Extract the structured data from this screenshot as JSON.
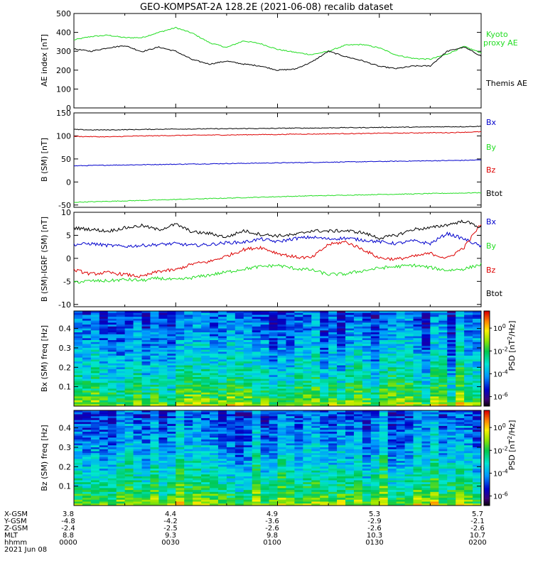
{
  "title": "GEO-KOMPSAT-2A 128.2E (2021-06-08) recalib dataset",
  "colors": {
    "black": "#000000",
    "green": "#22dd22",
    "blue": "#0000cc",
    "red": "#dd0000"
  },
  "chart_data": [
    {
      "type": "line",
      "ylabel": "AE index [nT]",
      "ylim": [
        0,
        500
      ],
      "yticks": [
        "0",
        "100",
        "200",
        "300",
        "400",
        "500"
      ],
      "x": [
        "0000",
        "0005",
        "0010",
        "0015",
        "0020",
        "0025",
        "0030",
        "0035",
        "0040",
        "0045",
        "0050",
        "0055",
        "0100",
        "0105",
        "0110",
        "0115",
        "0120",
        "0125",
        "0130",
        "0135",
        "0140",
        "0145",
        "0150",
        "0155",
        "0200"
      ],
      "series": [
        {
          "name": "Kyoto proxy AE",
          "color": "#22dd22",
          "values": [
            360,
            378,
            385,
            372,
            372,
            400,
            425,
            395,
            345,
            320,
            355,
            340,
            310,
            295,
            282,
            300,
            332,
            336,
            318,
            280,
            262,
            258,
            285,
            325,
            292
          ]
        },
        {
          "name": "Themis AE",
          "color": "#000000",
          "values": [
            312,
            300,
            318,
            330,
            298,
            322,
            300,
            255,
            232,
            248,
            232,
            222,
            200,
            205,
            242,
            300,
            272,
            250,
            220,
            208,
            222,
            222,
            300,
            322,
            275
          ]
        }
      ]
    },
    {
      "type": "line",
      "ylabel": "B (SM) [nT]",
      "ylim": [
        -55,
        150
      ],
      "yticks": [
        "-50",
        "0",
        "50",
        "100",
        "150"
      ],
      "x": [
        "0000",
        "0005",
        "0010",
        "0015",
        "0020",
        "0025",
        "0030",
        "0035",
        "0040",
        "0045",
        "0050",
        "0055",
        "0100",
        "0105",
        "0110",
        "0115",
        "0120",
        "0125",
        "0130",
        "0135",
        "0140",
        "0145",
        "0150",
        "0155",
        "0200"
      ],
      "series": [
        {
          "name": "Bx",
          "color": "#0000cc",
          "values": [
            35,
            35.8,
            36.5,
            37,
            37.5,
            38,
            38.5,
            39,
            39.5,
            40,
            40.5,
            41,
            41.5,
            42,
            42.5,
            43,
            43.5,
            44,
            44.5,
            45,
            45.5,
            46,
            46.5,
            47,
            48
          ]
        },
        {
          "name": "By",
          "color": "#22dd22",
          "values": [
            -44,
            -43,
            -42,
            -41,
            -40,
            -39,
            -38,
            -37,
            -36,
            -35,
            -34,
            -33,
            -32,
            -31,
            -30,
            -29.5,
            -28.5,
            -28,
            -27,
            -26.5,
            -26,
            -25,
            -24.5,
            -24,
            -23
          ]
        },
        {
          "name": "Bz",
          "color": "#dd0000",
          "values": [
            99,
            98.5,
            98,
            99,
            100,
            100.5,
            101,
            101.5,
            102,
            102,
            102.5,
            103,
            103,
            104,
            104,
            104.5,
            105,
            105,
            106,
            106,
            106.5,
            107,
            107,
            108,
            109
          ]
        },
        {
          "name": "Btot",
          "color": "#000000",
          "values": [
            114,
            113,
            113,
            113.5,
            114,
            114.5,
            115,
            115,
            115.5,
            115.5,
            116,
            116,
            116.5,
            117,
            117,
            117.5,
            118,
            118,
            118.5,
            119,
            119,
            119.5,
            120,
            120,
            121
          ]
        }
      ]
    },
    {
      "type": "line",
      "ylabel": "B (SM)-IGRF (SM) [nT]",
      "ylim": [
        -10.5,
        10
      ],
      "yticks": [
        "-10",
        "-5",
        "0",
        "5",
        "10"
      ],
      "x": [
        "0000",
        "0005",
        "0010",
        "0015",
        "0020",
        "0025",
        "0030",
        "0035",
        "0040",
        "0045",
        "0050",
        "0055",
        "0100",
        "0105",
        "0110",
        "0115",
        "0120",
        "0125",
        "0130",
        "0135",
        "0140",
        "0145",
        "0150",
        "0155",
        "0200"
      ],
      "series": [
        {
          "name": "Bx",
          "color": "#0000cc",
          "values": [
            3.0,
            3.2,
            2.8,
            2.6,
            2.8,
            3.0,
            3.2,
            2.8,
            3.0,
            3.4,
            3.5,
            4.2,
            3.6,
            4.3,
            4.6,
            4.2,
            4.4,
            4.0,
            3.6,
            3.2,
            3.8,
            3.2,
            5.4,
            4.2,
            2.6
          ]
        },
        {
          "name": "By",
          "color": "#22dd22",
          "values": [
            -5.2,
            -4.9,
            -4.9,
            -4.6,
            -4.8,
            -4.3,
            -4.7,
            -4.2,
            -3.6,
            -3.0,
            -2.3,
            -1.8,
            -1.5,
            -2.2,
            -2.5,
            -3.5,
            -3.4,
            -2.7,
            -2.1,
            -1.8,
            -1.5,
            -2.0,
            -2.6,
            -2.3,
            -1.3
          ]
        },
        {
          "name": "Bz",
          "color": "#dd0000",
          "values": [
            -2.5,
            -3.4,
            -3.1,
            -3.5,
            -4.0,
            -2.8,
            -2.5,
            -1.2,
            -0.7,
            0.5,
            1.9,
            2.4,
            1.1,
            0.3,
            0.1,
            3.0,
            3.6,
            2.0,
            0.1,
            -0.2,
            0.4,
            1.1,
            0.0,
            2.4,
            7.5
          ]
        },
        {
          "name": "Btot",
          "color": "#000000",
          "values": [
            6.6,
            6.3,
            5.9,
            6.6,
            7.1,
            6.2,
            7.4,
            5.7,
            5.4,
            4.6,
            6.0,
            5.2,
            4.9,
            5.1,
            6.0,
            5.9,
            6.0,
            5.6,
            4.4,
            5.0,
            6.3,
            6.6,
            7.3,
            8.1,
            6.7
          ]
        }
      ]
    },
    {
      "type": "heatmap",
      "ylabel": "Bx (SM) freq [Hz]",
      "ylim": [
        0,
        0.49
      ],
      "yticks": [
        "0.1",
        "0.2",
        "0.3",
        "0.4"
      ],
      "colorbar_label": "PSD [nT^2/Hz]",
      "colorbar_ticks": [
        "10^0",
        "10^-2",
        "10^-4",
        "10^-6"
      ]
    },
    {
      "type": "heatmap",
      "ylabel": "Bz (SM) freq [Hz]",
      "ylim": [
        0,
        0.49
      ],
      "yticks": [
        "0.1",
        "0.2",
        "0.3",
        "0.4"
      ],
      "colorbar_label": "PSD [nT^2/Hz]",
      "colorbar_ticks": [
        "10^0",
        "10^-2",
        "10^-4",
        "10^-6"
      ]
    }
  ],
  "legend_right": {
    "panel1": [
      {
        "text": "Kyoto",
        "color": "#22dd22"
      },
      {
        "text": "proxy AE",
        "color": "#22dd22"
      },
      {
        "text": "Themis AE",
        "color": "#000000"
      }
    ],
    "panel2": [
      {
        "text": "Bx",
        "color": "#0000cc"
      },
      {
        "text": "By",
        "color": "#22dd22"
      },
      {
        "text": "Bz",
        "color": "#dd0000"
      },
      {
        "text": "Btot",
        "color": "#000000"
      }
    ],
    "panel3": [
      {
        "text": "Bx",
        "color": "#0000cc"
      },
      {
        "text": "By",
        "color": "#22dd22"
      },
      {
        "text": "Bz",
        "color": "#dd0000"
      },
      {
        "text": "Btot",
        "color": "#000000"
      }
    ]
  },
  "ephemeris": {
    "row_labels": [
      "X-GSM",
      "Y-GSM",
      "Z-GSM",
      "MLT",
      "hhmm",
      "2021 Jun 08"
    ],
    "columns": [
      [
        "3.8",
        "-4.8",
        "-2.4",
        "8.8",
        "0000"
      ],
      [
        "4.4",
        "-4.2",
        "-2.5",
        "9.3",
        "0030"
      ],
      [
        "4.9",
        "-3.6",
        "-2.6",
        "9.8",
        "0100"
      ],
      [
        "5.3",
        "-2.9",
        "-2.6",
        "10.3",
        "0130"
      ],
      [
        "5.7",
        "-2.1",
        "-2.6",
        "10.7",
        "0200"
      ]
    ]
  }
}
